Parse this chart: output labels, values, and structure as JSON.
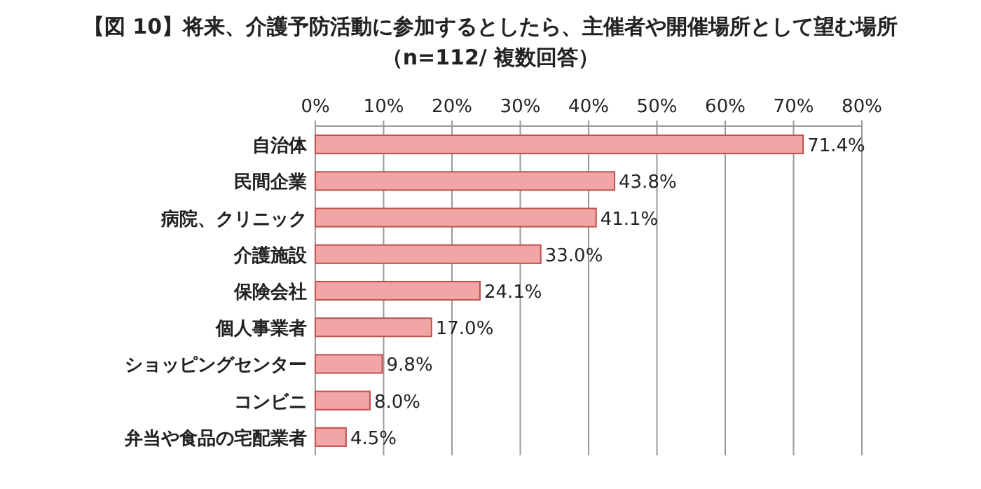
{
  "chart_data": {
    "type": "bar",
    "orientation": "horizontal",
    "title": "【図 10】将来、介護予防活動に参加するとしたら、主催者や開催場所として望む場所",
    "subtitle": "（n=112/ 複数回答）",
    "categories": [
      "自治体",
      "民間企業",
      "病院、クリニック",
      "介護施設",
      "保険会社",
      "個人事業者",
      "ショッピングセンター",
      "コンビニ",
      "弁当や食品の宅配業者"
    ],
    "values": [
      71.4,
      43.8,
      41.1,
      33.0,
      24.1,
      17.0,
      9.8,
      8.0,
      4.5
    ],
    "value_labels": [
      "71.4%",
      "43.8%",
      "41.1%",
      "33.0%",
      "24.1%",
      "17.0%",
      "9.8%",
      "8.0%",
      "4.5%"
    ],
    "color": "#f2a5a5",
    "xlim": [
      0,
      80
    ],
    "xticks": [
      {
        "value": 0,
        "label": "0%"
      },
      {
        "value": 10,
        "label": "10%"
      },
      {
        "value": 20,
        "label": "20%"
      },
      {
        "value": 30,
        "label": "30%"
      },
      {
        "value": 40,
        "label": "40%"
      },
      {
        "value": 50,
        "label": "50%"
      },
      {
        "value": 60,
        "label": "60%"
      },
      {
        "value": 70,
        "label": "70%"
      },
      {
        "value": 80,
        "label": "80%"
      }
    ],
    "grid": "x"
  }
}
